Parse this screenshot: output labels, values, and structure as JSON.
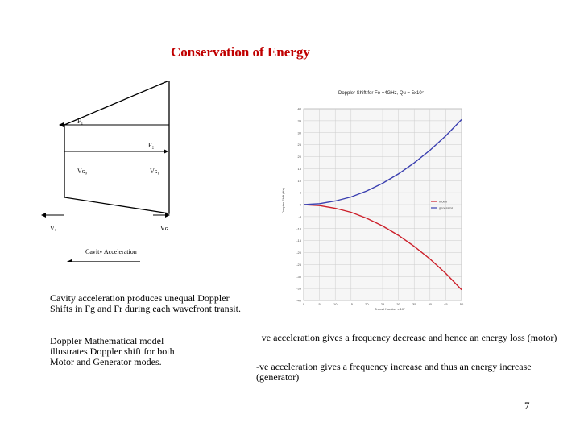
{
  "title": "Conservation of Energy",
  "diagram": {
    "labels": {
      "fr_top": "F₁",
      "fr_mid": "F₂",
      "vg0": "Vɢ₀",
      "vg1": "Vɢ₁",
      "vr": "Vᵣ",
      "vg": "Vɢ",
      "cavity_accel": "Cavity Acceleration"
    }
  },
  "paragraphs": {
    "p1": "Cavity acceleration produces unequal Doppler Shifts in Fg and Fr during each wavefront transit.",
    "p2": "Doppler Mathematical model illustrates Doppler shift for both Motor and Generator modes.",
    "p3": "+ve acceleration gives a frequency decrease and hence an energy loss (motor)",
    "p4": "-ve acceleration gives a frequency increase and thus an energy increase (generator)"
  },
  "page_number": "7",
  "colors": {
    "title": "#c00000",
    "motor": "#cc1f2a",
    "generator": "#3a3fb0"
  },
  "chart_data": {
    "type": "line",
    "title": "Doppler Shift for Fo =4GHz, Qu = 5x10⁷",
    "xlabel": "Transit Number x 10⁴",
    "ylabel": "Doppler Shift (Hz)",
    "x": [
      0,
      5,
      10,
      15,
      20,
      25,
      30,
      35,
      40,
      45,
      50
    ],
    "xlim": [
      0,
      50
    ],
    "ylim": [
      -40,
      40
    ],
    "yticks": [
      40,
      35,
      30,
      25,
      20,
      15,
      10,
      5,
      0,
      -5,
      -10,
      -15,
      -20,
      -25,
      -30,
      -35,
      -40
    ],
    "grid": true,
    "legend_position": "right",
    "series": [
      {
        "name": "motor",
        "color": "#cc1f2a",
        "values": [
          0,
          -0.4,
          -1.5,
          -3.2,
          -5.7,
          -8.9,
          -12.8,
          -17.4,
          -22.7,
          -28.7,
          -35.5
        ]
      },
      {
        "name": "generator",
        "color": "#3a3fb0",
        "values": [
          0,
          0.4,
          1.5,
          3.2,
          5.7,
          8.9,
          12.8,
          17.4,
          22.7,
          28.7,
          35.5
        ]
      }
    ]
  }
}
